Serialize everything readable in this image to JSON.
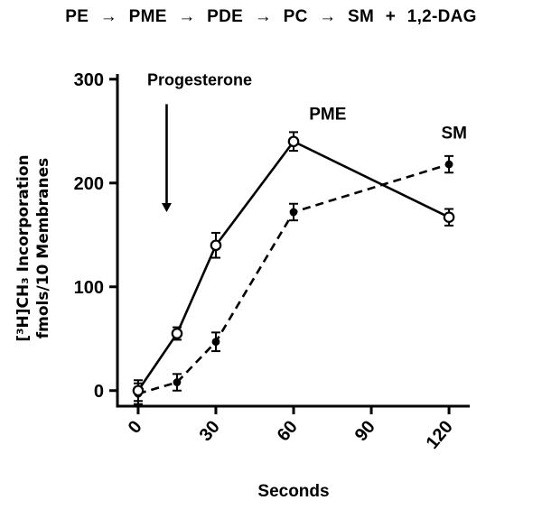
{
  "header": {
    "pathway": "PE → PME → PDE → PC → SM + 1,2-DAG"
  },
  "chart_data": {
    "type": "line",
    "title": "",
    "xlabel": "Seconds",
    "ylabel_line1": "[³H]CH₃ Incorporation",
    "ylabel_line2": "fmols/10 Membranes",
    "xlim": [
      -8,
      128
    ],
    "ylim": [
      -15,
      305
    ],
    "x_ticks": [
      0,
      30,
      60,
      90,
      120
    ],
    "y_ticks": [
      0,
      100,
      200,
      300
    ],
    "grid": false,
    "series": [
      {
        "name": "SM",
        "line": "dashed",
        "marker": "filled-circle",
        "x": [
          0,
          15,
          30,
          60,
          120
        ],
        "y": [
          -3,
          8,
          47,
          172,
          218
        ],
        "err": [
          10,
          8,
          9,
          8,
          8
        ],
        "label": {
          "text": "SM",
          "x": 117,
          "y": 243
        }
      },
      {
        "name": "PME",
        "line": "solid",
        "marker": "open-circle",
        "x": [
          0,
          15,
          30,
          60,
          120
        ],
        "y": [
          0,
          55,
          140,
          240,
          167
        ],
        "err": [
          10,
          6,
          12,
          9,
          8
        ],
        "label": {
          "text": "PME",
          "x": 66,
          "y": 261
        }
      }
    ],
    "annotation": {
      "text": "Progesterone",
      "text_x": 3.5,
      "text_y": 294,
      "arrow_x": 11,
      "arrow_y_from": 276,
      "arrow_y_to": 172
    }
  }
}
